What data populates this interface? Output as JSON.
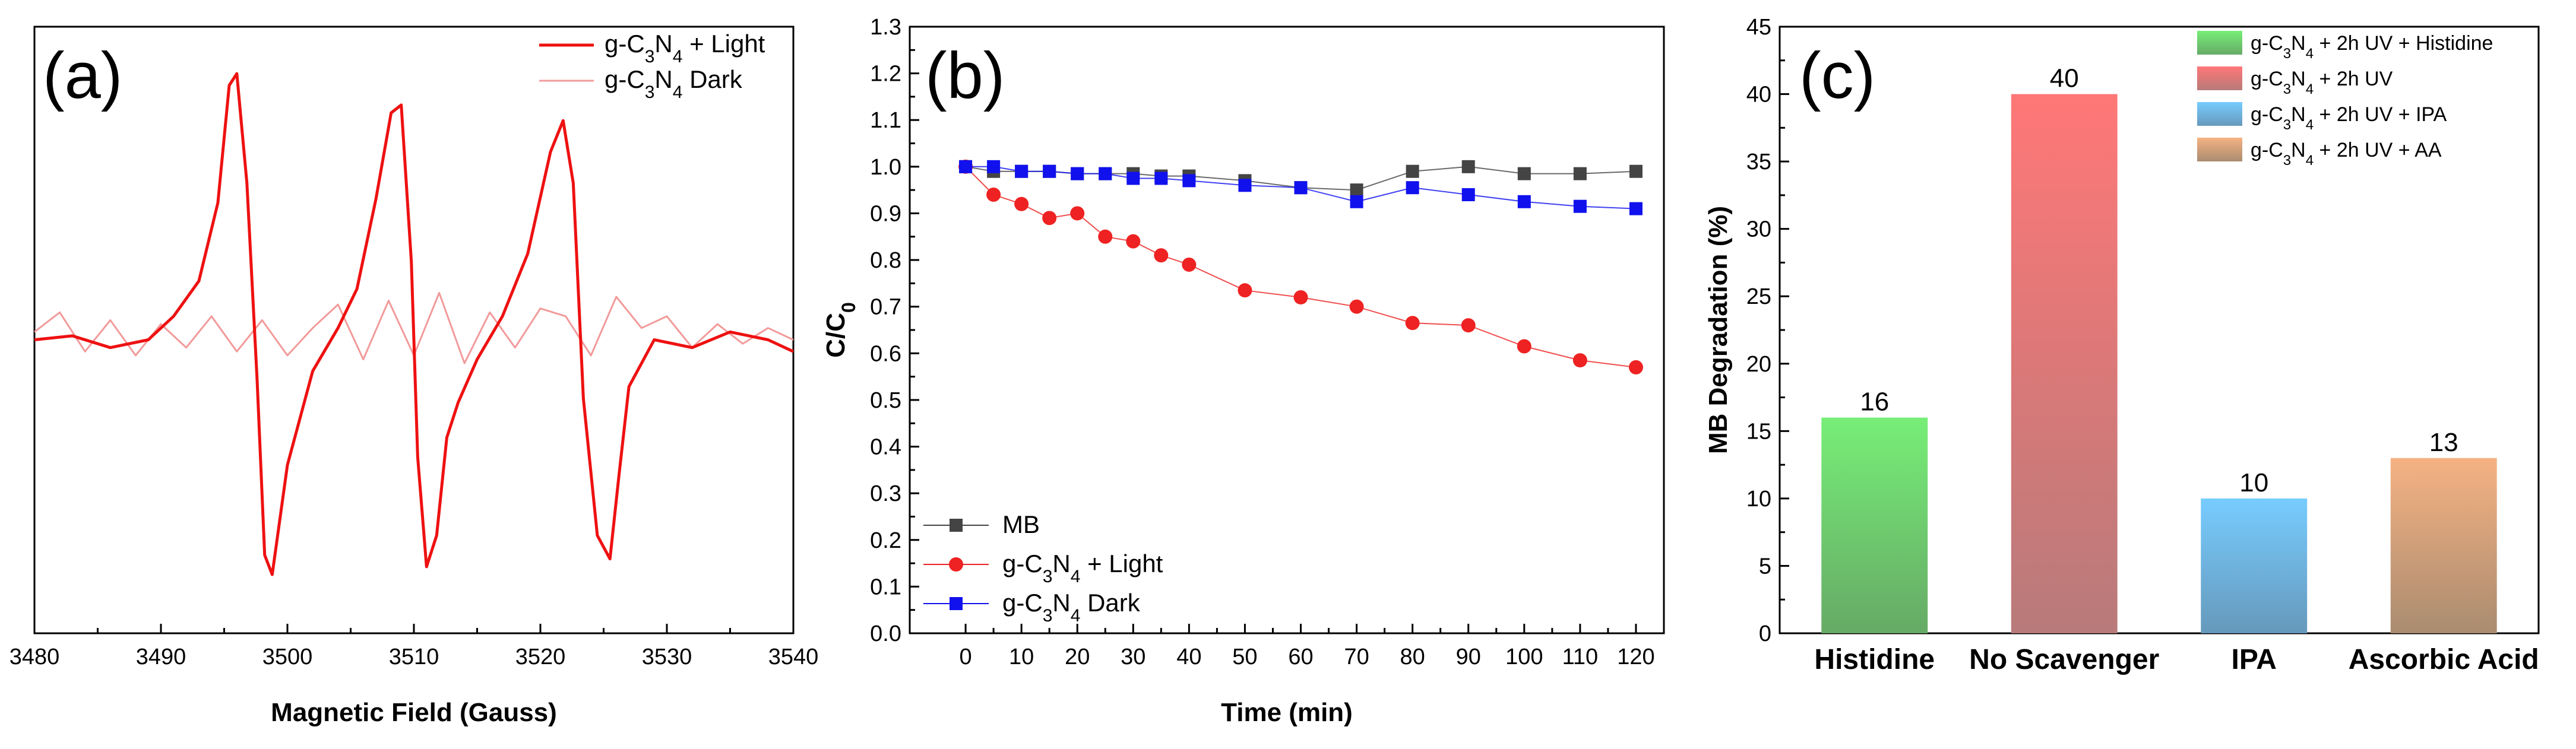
{
  "chart_data": [
    {
      "type": "line",
      "panel_label": "(a)",
      "xlabel": "Magnetic Field (Gauss)",
      "ylabel": "",
      "xlim": [
        3480,
        3540
      ],
      "xticks": [
        "3480",
        "3490",
        "3500",
        "3510",
        "3520",
        "3530",
        "3540"
      ],
      "grid": false,
      "legend_position": "top-right",
      "series": [
        {
          "name_main": "g-C",
          "name_sub1": "3",
          "name_mid": "N",
          "name_sub2": "4",
          "name_tail": " + Light",
          "color": "#ee1111",
          "x": [
            3480,
            3483,
            3486,
            3489,
            3491,
            3493,
            3494.5,
            3495.4,
            3496,
            3496.8,
            3497.6,
            3498.2,
            3498.8,
            3500,
            3502,
            3504,
            3505.5,
            3507,
            3508.2,
            3509,
            3509.8,
            3510.3,
            3511,
            3511.8,
            3512.6,
            3513.5,
            3515,
            3517,
            3519,
            3520.8,
            3521.8,
            3522.6,
            3523.4,
            3524.5,
            3525.5,
            3526.2,
            3527,
            3529,
            3532,
            3535,
            3538,
            3540
          ],
          "y": [
            0.0,
            0.1,
            -0.2,
            0.0,
            0.6,
            1.5,
            3.5,
            6.5,
            6.8,
            4.0,
            -1.0,
            -5.5,
            -6.0,
            -3.2,
            -0.8,
            0.3,
            1.3,
            3.6,
            5.8,
            6.0,
            2.0,
            -3.0,
            -5.8,
            -5.0,
            -2.5,
            -1.6,
            -0.5,
            0.6,
            2.2,
            4.8,
            5.6,
            4.0,
            -1.5,
            -5.0,
            -5.6,
            -3.5,
            -1.2,
            0.0,
            -0.2,
            0.2,
            0.0,
            -0.3
          ]
        },
        {
          "name_main": "g-C",
          "name_sub1": "3",
          "name_mid": "N",
          "name_sub2": "4",
          "name_tail": " Dark",
          "color": "#f29a9a",
          "x": [
            3480,
            3482,
            3484,
            3486,
            3488,
            3490,
            3492,
            3494,
            3496,
            3498,
            3500,
            3502,
            3504,
            3506,
            3508,
            3510,
            3512,
            3514,
            3516,
            3518,
            3520,
            3522,
            3524,
            3526,
            3528,
            3530,
            3532,
            3534,
            3536,
            3538,
            3540
          ],
          "y": [
            0.2,
            0.7,
            -0.3,
            0.5,
            -0.4,
            0.4,
            -0.2,
            0.6,
            -0.3,
            0.5,
            -0.4,
            0.3,
            0.9,
            -0.5,
            1.0,
            -0.4,
            1.2,
            -0.6,
            0.7,
            -0.2,
            0.8,
            0.6,
            -0.4,
            1.1,
            0.3,
            0.6,
            -0.2,
            0.4,
            -0.1,
            0.3,
            0.0
          ]
        }
      ],
      "ylim": [
        -7.5,
        8.0
      ]
    },
    {
      "type": "line",
      "panel_label": "(b)",
      "xlabel": "Time (min)",
      "ylabel_main": "C/C",
      "ylabel_sub": "0",
      "xlim": [
        -10,
        125
      ],
      "ylim": [
        0.0,
        1.3
      ],
      "xticks": [
        0,
        10,
        20,
        30,
        40,
        50,
        60,
        70,
        80,
        90,
        100,
        110,
        120
      ],
      "yticks": [
        "0.0",
        "0.1",
        "0.2",
        "0.3",
        "0.4",
        "0.5",
        "0.6",
        "0.7",
        "0.8",
        "0.9",
        "1.0",
        "1.1",
        "1.2",
        "1.3"
      ],
      "grid": false,
      "legend_position": "bottom-left",
      "series": [
        {
          "name_main": "MB",
          "name_sub1": "",
          "name_mid": "",
          "name_sub2": "",
          "name_tail": "",
          "color": "#444444",
          "marker": "square",
          "x": [
            0,
            5,
            10,
            15,
            20,
            25,
            30,
            35,
            40,
            50,
            60,
            70,
            80,
            90,
            100,
            110,
            120
          ],
          "y": [
            1.0,
            0.99,
            0.99,
            0.99,
            0.985,
            0.985,
            0.985,
            0.98,
            0.98,
            0.97,
            0.955,
            0.95,
            0.99,
            1.0,
            0.985,
            0.985,
            0.99
          ]
        },
        {
          "name_main": "g-C",
          "name_sub1": "3",
          "name_mid": "N",
          "name_sub2": "4",
          "name_tail": " + Light",
          "color": "#ee2222",
          "marker": "circle",
          "x": [
            0,
            5,
            10,
            15,
            20,
            25,
            30,
            35,
            40,
            50,
            60,
            70,
            80,
            90,
            100,
            110,
            120
          ],
          "y": [
            1.0,
            0.94,
            0.92,
            0.89,
            0.9,
            0.85,
            0.84,
            0.81,
            0.79,
            0.735,
            0.72,
            0.7,
            0.665,
            0.66,
            0.615,
            0.585,
            0.57
          ]
        },
        {
          "name_main": "g-C",
          "name_sub1": "3",
          "name_mid": "N",
          "name_sub2": "4",
          "name_tail": " Dark",
          "color": "#1111ee",
          "marker": "square",
          "x": [
            0,
            5,
            10,
            15,
            20,
            25,
            30,
            35,
            40,
            50,
            60,
            70,
            80,
            90,
            100,
            110,
            120
          ],
          "y": [
            1.0,
            1.0,
            0.99,
            0.99,
            0.985,
            0.985,
            0.975,
            0.975,
            0.97,
            0.96,
            0.955,
            0.925,
            0.955,
            0.94,
            0.925,
            0.915,
            0.91
          ]
        }
      ]
    },
    {
      "type": "bar",
      "panel_label": "(c)",
      "ylabel": "MB Degradation (%)",
      "ylim": [
        0,
        45
      ],
      "yticks": [
        "0",
        "5",
        "10",
        "15",
        "20",
        "25",
        "30",
        "35",
        "40",
        "45"
      ],
      "grid": false,
      "legend_position": "top-right",
      "categories": [
        "Histidine",
        "No Scavenger",
        "IPA",
        "Ascorbic Acid"
      ],
      "values": [
        16,
        40,
        10,
        13
      ],
      "value_labels": [
        "16",
        "40",
        "10",
        "13"
      ],
      "colors_top": [
        "#77ee77",
        "#ff7777",
        "#77ccff",
        "#f5b283"
      ],
      "colors_bottom": [
        "#66aa66",
        "#b87a7a",
        "#6699bb",
        "#aa8c70"
      ],
      "legend": [
        {
          "main": "g-C",
          "sub1": "3",
          "mid": "N",
          "sub2": "4",
          "tail": " + 2h UV + Histidine"
        },
        {
          "main": "g-C",
          "sub1": "3",
          "mid": "N",
          "sub2": "4",
          "tail": " + 2h UV"
        },
        {
          "main": "g-C",
          "sub1": "3",
          "mid": "N",
          "sub2": "4",
          "tail": " + 2h UV + IPA"
        },
        {
          "main": "g-C",
          "sub1": "3",
          "mid": "N",
          "sub2": "4",
          "tail": " + 2h UV + AA"
        }
      ]
    }
  ]
}
